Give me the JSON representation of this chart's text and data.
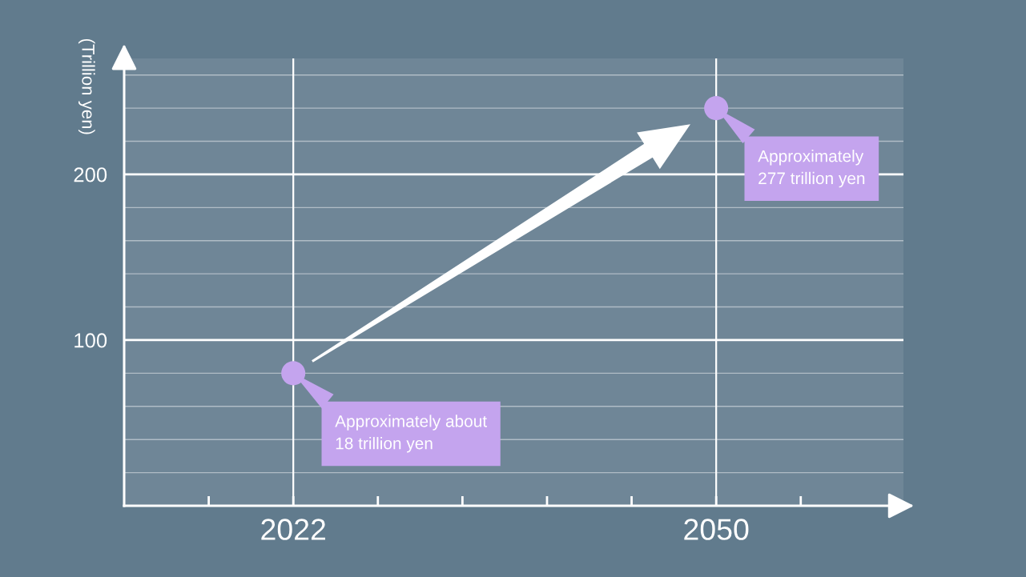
{
  "chart_data": {
    "type": "scatter",
    "ylabel": "(Trillion yen)",
    "x": [
      2022,
      2050
    ],
    "values": [
      80,
      240
    ],
    "color": "#c4a4ee",
    "marker": "circle",
    "xlim": [
      2010.8,
      2062.4
    ],
    "xticks": [
      {
        "value": 2016.4,
        "label": null
      },
      2022,
      {
        "value": 2027.6,
        "label": null
      },
      {
        "value": 2033.2,
        "label": null
      },
      {
        "value": 2038.8,
        "label": null
      },
      {
        "value": 2044.4,
        "label": null
      },
      2050,
      {
        "value": 2055.6,
        "label": null
      }
    ],
    "ylim": [
      0,
      270
    ],
    "yticks": [
      {
        "value": 20,
        "label": null
      },
      {
        "value": 40,
        "label": null
      },
      {
        "value": 60,
        "label": null
      },
      {
        "value": 80,
        "label": null
      },
      100,
      {
        "value": 120,
        "label": null
      },
      {
        "value": 140,
        "label": null
      },
      {
        "value": 160,
        "label": null
      },
      {
        "value": 180,
        "label": null
      },
      200,
      {
        "value": 220,
        "label": null
      },
      {
        "value": 240,
        "label": null
      },
      {
        "value": 260,
        "label": null
      }
    ],
    "grid": true,
    "annotations": [
      "Approximately about\n18 trillion yen",
      "Approximately\n277 trillion yen"
    ]
  }
}
